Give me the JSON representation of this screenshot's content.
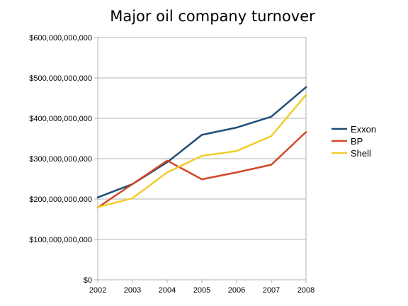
{
  "chart_data": {
    "type": "line",
    "title": "Major oil company turnover",
    "xlabel": "",
    "ylabel": "",
    "categories": [
      "2002",
      "2003",
      "2004",
      "2005",
      "2006",
      "2007",
      "2008"
    ],
    "y_ticks": [
      {
        "value": 0,
        "label": "$0"
      },
      {
        "value": 100000000000,
        "label": "$100,000,000,000"
      },
      {
        "value": 200000000000,
        "label": "$200,000,000,000"
      },
      {
        "value": 300000000000,
        "label": "$300,000,000,000"
      },
      {
        "value": 400000000000,
        "label": "$400,000,000,000"
      },
      {
        "value": 500000000000,
        "label": "$500,000,000,000"
      },
      {
        "value": 600000000000,
        "label": "$600,000,000,000"
      }
    ],
    "ylim": [
      0,
      600000000000
    ],
    "grid": true,
    "legend_position": "right",
    "series": [
      {
        "name": "Exxon",
        "color": "#1f4e79",
        "values": [
          204000000000,
          237000000000,
          291000000000,
          359000000000,
          377000000000,
          404000000000,
          477000000000
        ]
      },
      {
        "name": "BP",
        "color": "#d24726",
        "values": [
          179000000000,
          237000000000,
          295000000000,
          249000000000,
          266000000000,
          285000000000,
          366000000000
        ]
      },
      {
        "name": "Shell",
        "color": "#f2cc2e",
        "values": [
          180000000000,
          202000000000,
          266000000000,
          307000000000,
          319000000000,
          356000000000,
          458000000000
        ]
      }
    ]
  }
}
